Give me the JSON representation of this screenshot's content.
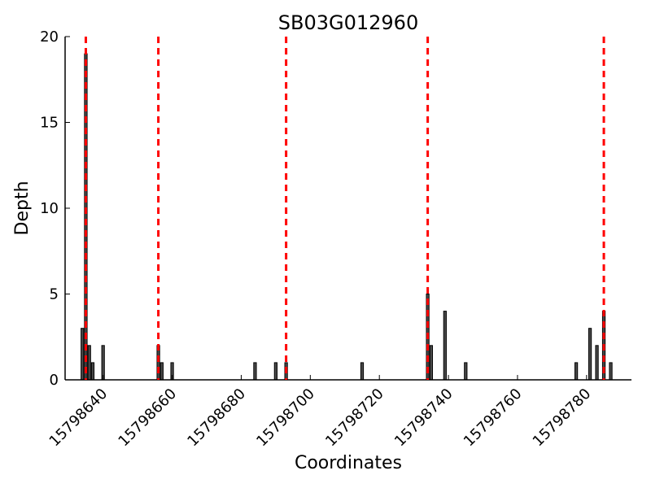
{
  "chart_data": {
    "type": "bar",
    "title": "SB03G012960",
    "xlabel": "Coordinates",
    "ylabel": "Depth",
    "xlim": [
      15798629,
      15798793
    ],
    "ylim": [
      0,
      20
    ],
    "x_ticks": [
      15798640,
      15798660,
      15798680,
      15798700,
      15798720,
      15798740,
      15798760,
      15798780
    ],
    "y_ticks": [
      0,
      5,
      10,
      15,
      20
    ],
    "grid": false,
    "bar_color": "#4a4a4a",
    "marker_color": "#ff0000",
    "bars": [
      {
        "x": 15798634,
        "value": 3
      },
      {
        "x": 15798635,
        "value": 19
      },
      {
        "x": 15798636,
        "value": 2
      },
      {
        "x": 15798637,
        "value": 1
      },
      {
        "x": 15798640,
        "value": 2
      },
      {
        "x": 15798656,
        "value": 2
      },
      {
        "x": 15798657,
        "value": 1
      },
      {
        "x": 15798660,
        "value": 1
      },
      {
        "x": 15798684,
        "value": 1
      },
      {
        "x": 15798690,
        "value": 1
      },
      {
        "x": 15798693,
        "value": 1
      },
      {
        "x": 15798715,
        "value": 1
      },
      {
        "x": 15798734,
        "value": 5
      },
      {
        "x": 15798735,
        "value": 2
      },
      {
        "x": 15798739,
        "value": 4
      },
      {
        "x": 15798745,
        "value": 1
      },
      {
        "x": 15798777,
        "value": 1
      },
      {
        "x": 15798781,
        "value": 3
      },
      {
        "x": 15798783,
        "value": 2
      },
      {
        "x": 15798785,
        "value": 4
      },
      {
        "x": 15798787,
        "value": 1
      }
    ],
    "markers": [
      15798635,
      15798656,
      15798693,
      15798734,
      15798785
    ]
  }
}
